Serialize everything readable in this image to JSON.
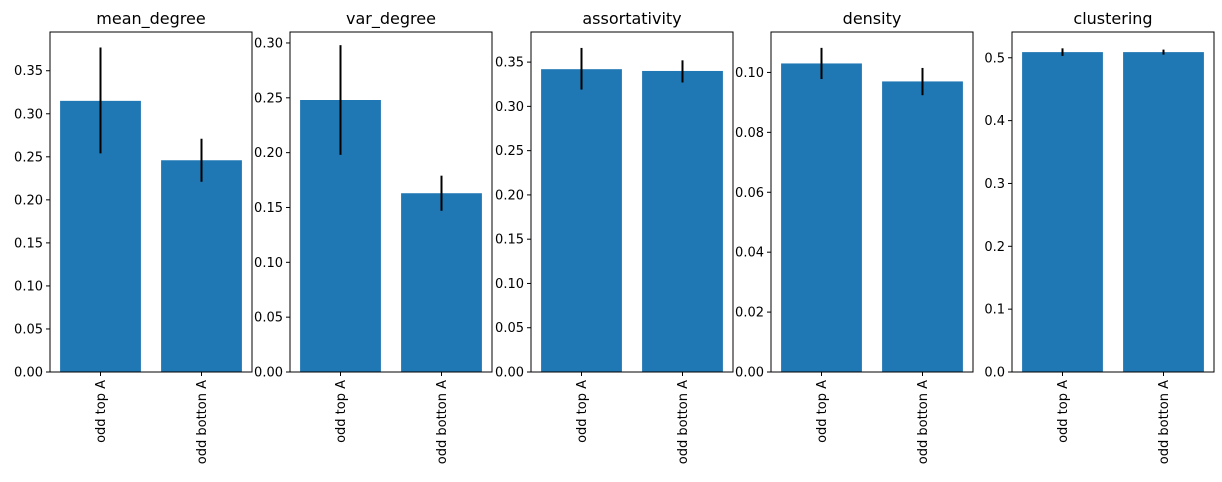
{
  "bar_color": "#1f77b4",
  "error_color": "#000000",
  "chart_data": [
    {
      "type": "bar",
      "title": "mean_degree",
      "categories": [
        "odd top A",
        "odd botton A"
      ],
      "values": [
        0.315,
        0.246
      ],
      "errors": [
        [
          0.254,
          0.377
        ],
        [
          0.221,
          0.271
        ]
      ],
      "ylim": [
        0,
        0.395
      ],
      "yticks": [
        0.0,
        0.05,
        0.1,
        0.15,
        0.2,
        0.25,
        0.3,
        0.35
      ],
      "ytick_labels": [
        "0.00",
        "0.05",
        "0.10",
        "0.15",
        "0.20",
        "0.25",
        "0.30",
        "0.35"
      ],
      "xlabel": "",
      "ylabel": "",
      "grid": false
    },
    {
      "type": "bar",
      "title": "var_degree",
      "categories": [
        "odd top A",
        "odd botton A"
      ],
      "values": [
        0.248,
        0.163
      ],
      "errors": [
        [
          0.198,
          0.298
        ],
        [
          0.147,
          0.179
        ]
      ],
      "ylim": [
        0,
        0.31
      ],
      "yticks": [
        0.0,
        0.05,
        0.1,
        0.15,
        0.2,
        0.25,
        0.3
      ],
      "ytick_labels": [
        "0.00",
        "0.05",
        "0.10",
        "0.15",
        "0.20",
        "0.25",
        "0.30"
      ],
      "xlabel": "",
      "ylabel": "",
      "grid": false
    },
    {
      "type": "bar",
      "title": "assortativity",
      "categories": [
        "odd top A",
        "odd botton A"
      ],
      "values": [
        0.342,
        0.34
      ],
      "errors": [
        [
          0.319,
          0.366
        ],
        [
          0.327,
          0.352
        ]
      ],
      "ylim": [
        0,
        0.384
      ],
      "yticks": [
        0.0,
        0.05,
        0.1,
        0.15,
        0.2,
        0.25,
        0.3,
        0.35
      ],
      "ytick_labels": [
        "0.00",
        "0.05",
        "0.10",
        "0.15",
        "0.20",
        "0.25",
        "0.30",
        "0.35"
      ],
      "xlabel": "",
      "ylabel": "",
      "grid": false
    },
    {
      "type": "bar",
      "title": "density",
      "categories": [
        "odd top A",
        "odd botton A"
      ],
      "values": [
        0.103,
        0.097
      ],
      "errors": [
        [
          0.0978,
          0.1082
        ],
        [
          0.0924,
          0.1015
        ]
      ],
      "ylim": [
        0,
        0.1135
      ],
      "yticks": [
        0.0,
        0.02,
        0.04,
        0.06,
        0.08,
        0.1
      ],
      "ytick_labels": [
        "0.00",
        "0.02",
        "0.04",
        "0.06",
        "0.08",
        "0.10"
      ],
      "xlabel": "",
      "ylabel": "",
      "grid": false
    },
    {
      "type": "bar",
      "title": "clustering",
      "categories": [
        "odd top A",
        "odd botton A"
      ],
      "values": [
        0.509,
        0.509
      ],
      "errors": [
        [
          0.503,
          0.515
        ],
        [
          0.505,
          0.513
        ]
      ],
      "ylim": [
        0,
        0.541
      ],
      "yticks": [
        0.0,
        0.1,
        0.2,
        0.3,
        0.4,
        0.5
      ],
      "ytick_labels": [
        "0.0",
        "0.1",
        "0.2",
        "0.3",
        "0.4",
        "0.5"
      ],
      "xlabel": "",
      "ylabel": "",
      "grid": false
    }
  ]
}
